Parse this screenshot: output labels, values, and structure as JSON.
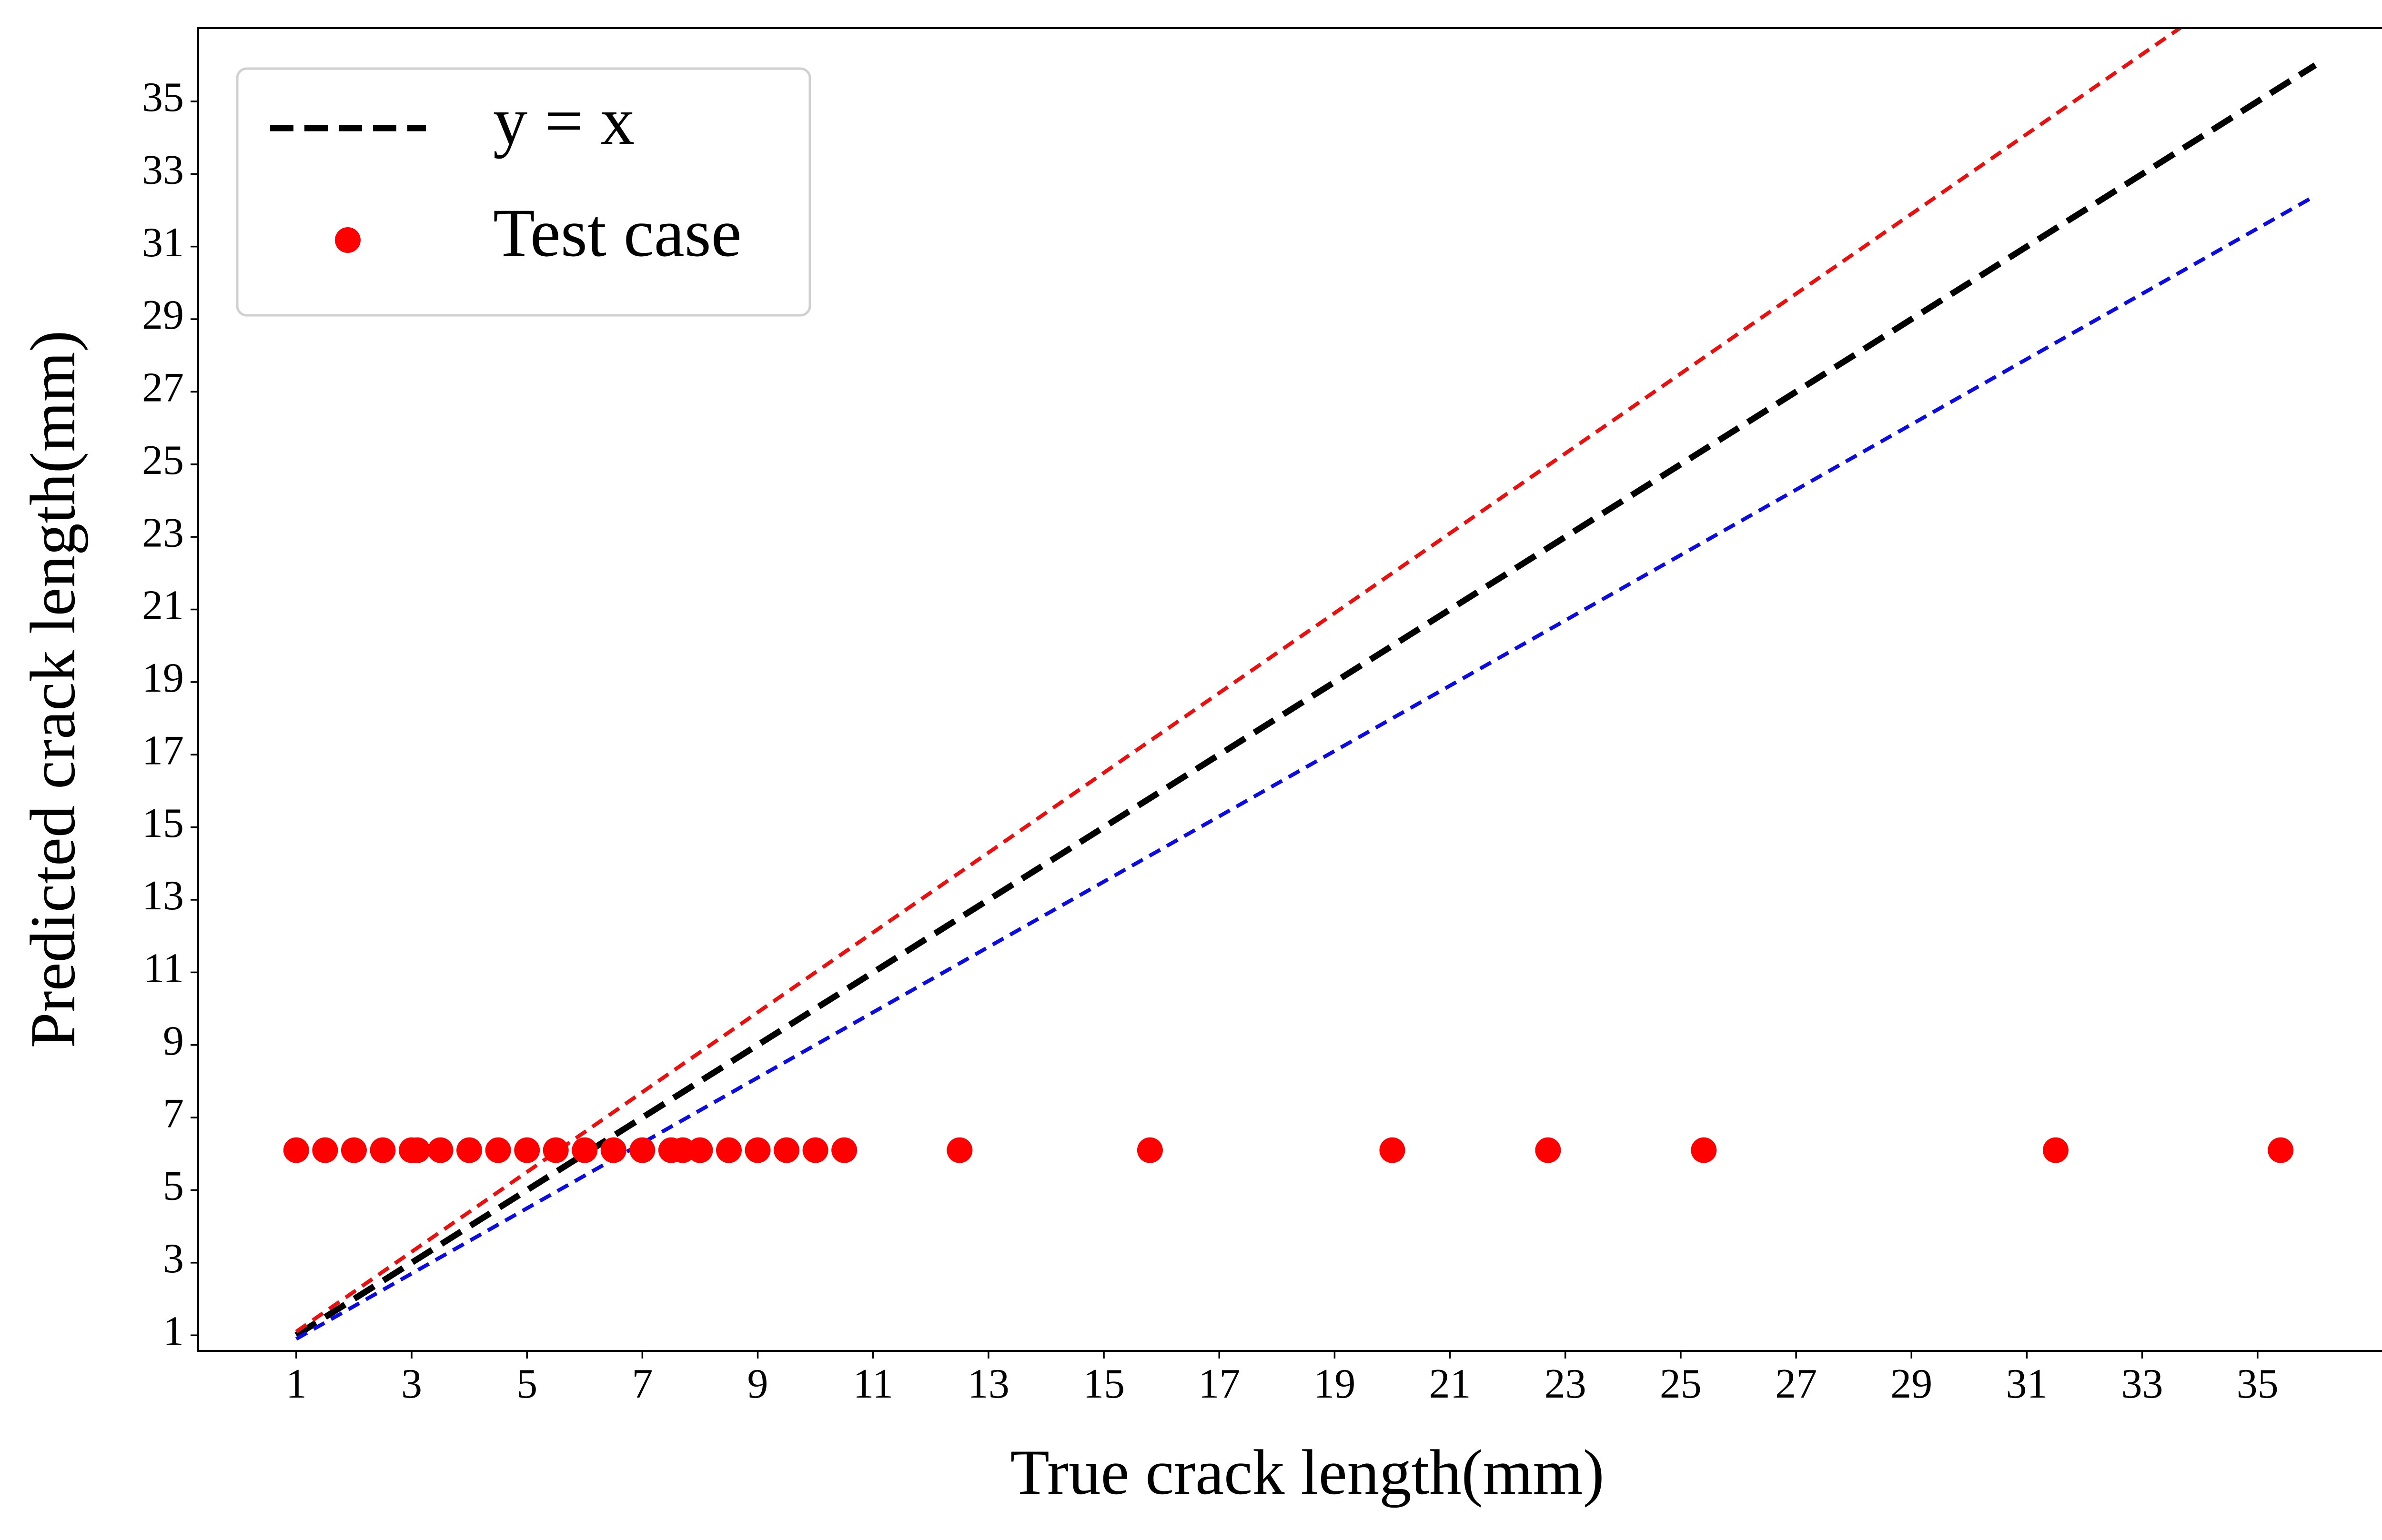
{
  "chart_data": {
    "type": "scatter",
    "xlabel": "True crack length(mm)",
    "ylabel": "Predicted crack length(mm)",
    "xlim": [
      -0.7,
      37.76
    ],
    "ylim": [
      0.57,
      37.02
    ],
    "xticks": [
      1,
      3,
      5,
      7,
      9,
      11,
      13,
      15,
      17,
      19,
      21,
      23,
      25,
      27,
      29,
      31,
      33,
      35
    ],
    "yticks": [
      1,
      3,
      5,
      7,
      9,
      11,
      13,
      15,
      17,
      19,
      21,
      23,
      25,
      27,
      29,
      31,
      33,
      35
    ],
    "legend": "upper left",
    "series": [
      {
        "name": "y = x",
        "type": "line",
        "color": "#000000",
        "x": [
          1,
          36
        ],
        "values": [
          1,
          36
        ]
      },
      {
        "type": "line",
        "color": "#e8110f",
        "x": [
          1,
          36
        ],
        "values": [
          1.1,
          39.6
        ]
      },
      {
        "type": "line",
        "color": "#0c0ce0",
        "x": [
          1,
          36
        ],
        "values": [
          0.9,
          32.4
        ]
      },
      {
        "name": "Test case",
        "type": "scatter",
        "color": "#ff0000",
        "x": [
          1,
          1.5,
          2,
          2.5,
          3,
          3.1,
          3.5,
          4,
          4.5,
          5,
          5.5,
          6,
          6.5,
          7,
          7.5,
          7.7,
          8,
          8.5,
          9,
          9.5,
          10,
          10.5,
          12.5,
          15.8,
          20,
          22.7,
          25.4,
          31.5,
          35.4
        ],
        "values": [
          6.1,
          6.1,
          6.1,
          6.1,
          6.1,
          6.1,
          6.1,
          6.1,
          6.1,
          6.1,
          6.1,
          6.1,
          6.1,
          6.1,
          6.1,
          6.1,
          6.1,
          6.1,
          6.1,
          6.1,
          6.1,
          6.1,
          6.1,
          6.1,
          6.1,
          6.1,
          6.1,
          6.1,
          6.1
        ]
      }
    ]
  }
}
